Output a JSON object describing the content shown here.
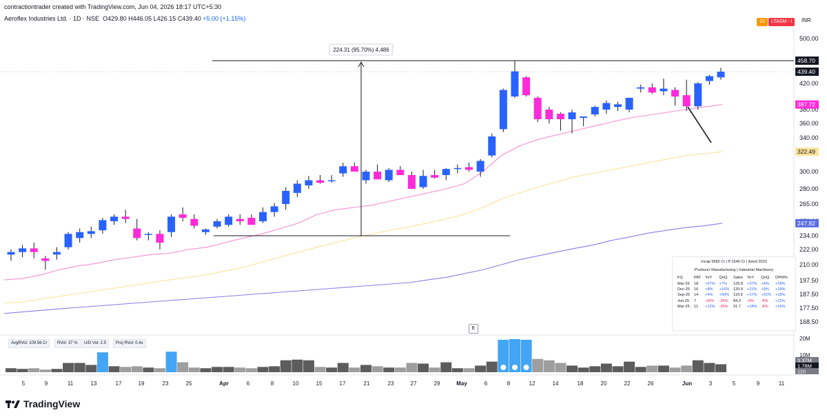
{
  "header": {
    "created_by": "contractiontrader created with TradingView.com, Jun 04, 2026 18:17 UTC+5:30",
    "symbol": "Aeroflex Industries Ltd. · 1D · NSE",
    "open": "O429.80",
    "high": "H446.05",
    "low": "L426.15",
    "close": "C439.40",
    "change": "+5.00 (+1.15%)"
  },
  "badges": {
    "b1": "10",
    "b2": "LTASM - I",
    "currency": "INR"
  },
  "colors": {
    "up": "#2962ff",
    "down": "#ff2bd8",
    "ma_pink": "#f48fcf",
    "ma_yellow": "#fbe29a",
    "ma_purple": "#8b7be6"
  },
  "measure_label": "224.31 (95.70%) 4,486",
  "price_tags": {
    "high": "458.70",
    "last": "439.40",
    "ma1": "387.72",
    "ma2": "322.49",
    "ma3": "247.82"
  },
  "y_ticks": [
    "500.00",
    "420.00",
    "380.00",
    "360.00",
    "340.00",
    "320.00",
    "300.00",
    "280.00",
    "265.00",
    "250.00",
    "234.00",
    "222.00",
    "210.00",
    "197.50",
    "187.50",
    "177.50",
    "168.50"
  ],
  "vol_ticks": {
    "top": "20M",
    "mid": "10M",
    "tag1": "3.37M",
    "tag2": "1.78M",
    "tag3": "110"
  },
  "x_labels": [
    "5",
    "9",
    "11",
    "13",
    "17",
    "19",
    "23",
    "25",
    "Apr",
    "6",
    "8",
    "10",
    "15",
    "17",
    "21",
    "23",
    "27",
    "29",
    "May",
    "6",
    "8",
    "12",
    "14",
    "18",
    "20",
    "22",
    "26",
    "Jun",
    "3",
    "5",
    "9",
    "11"
  ],
  "indicators": {
    "avg": "AvgRVol: 109.56 Cr",
    "rvol": "RVol: 37 %",
    "ud": "U/D Vol: 2.5",
    "proj": "Proj RVol: 0.4x"
  },
  "e_marker": "E",
  "fundamentals": {
    "line1": "mcap 5682 Cr  |  ff 1546 Cr  |  listed 2023",
    "line2": "Producer Manufacturing  |  Industrial Machinery",
    "headers": [
      "FQ",
      "PAT",
      "YoY",
      "QoQ",
      "Sales",
      "YoY",
      "QoQ",
      "OPM%"
    ],
    "rows": [
      [
        "Mar-26",
        "18",
        "+57%",
        "+7%",
        "125.8",
        "+37%",
        "+4%",
        "+18%"
      ],
      [
        "Dec-25",
        "16",
        "+8%",
        "+16%",
        "120.9",
        "+21%",
        "+9%",
        "+18%"
      ],
      [
        "Sep-25",
        "14",
        "+4%",
        "+99%",
        "110.9",
        "+17%",
        "+31%",
        "+18%"
      ],
      [
        "Jun-25",
        "7",
        "-42%",
        "-26%",
        "84.3",
        "-6%",
        "-8%",
        "+11%"
      ],
      [
        "Mar-25",
        "11",
        "+12%",
        "-26%",
        "91.7",
        "+18%",
        "-8%",
        "+16%"
      ]
    ]
  },
  "brand": "TradingView",
  "chart_data": {
    "type": "candlestick",
    "title": "Aeroflex Industries Ltd. · 1D · NSE",
    "x_labels": [
      "5",
      "9",
      "11",
      "13",
      "17",
      "19",
      "23",
      "25",
      "Apr",
      "6",
      "8",
      "10",
      "15",
      "17",
      "21",
      "23",
      "27",
      "29",
      "May",
      "6",
      "8",
      "12",
      "14",
      "18",
      "20",
      "22",
      "26",
      "Jun",
      "3",
      "5",
      "9",
      "11"
    ],
    "candles": [
      {
        "o": 218,
        "h": 222,
        "l": 213,
        "c": 220
      },
      {
        "o": 220,
        "h": 226,
        "l": 216,
        "c": 223
      },
      {
        "o": 223,
        "h": 228,
        "l": 215,
        "c": 220
      },
      {
        "o": 215,
        "h": 217,
        "l": 206,
        "c": 213
      },
      {
        "o": 218,
        "h": 224,
        "l": 214,
        "c": 220
      },
      {
        "o": 224,
        "h": 238,
        "l": 222,
        "c": 236
      },
      {
        "o": 232,
        "h": 242,
        "l": 228,
        "c": 238
      },
      {
        "o": 236,
        "h": 244,
        "l": 232,
        "c": 239
      },
      {
        "o": 240,
        "h": 253,
        "l": 236,
        "c": 251
      },
      {
        "o": 250,
        "h": 256,
        "l": 246,
        "c": 254
      },
      {
        "o": 254,
        "h": 260,
        "l": 248,
        "c": 252
      },
      {
        "o": 242,
        "h": 252,
        "l": 230,
        "c": 232
      },
      {
        "o": 236,
        "h": 238,
        "l": 230,
        "c": 236
      },
      {
        "o": 236,
        "h": 240,
        "l": 222,
        "c": 228
      },
      {
        "o": 238,
        "h": 256,
        "l": 233,
        "c": 254
      },
      {
        "o": 256,
        "h": 262,
        "l": 250,
        "c": 253
      },
      {
        "o": 252,
        "h": 256,
        "l": 242,
        "c": 245
      },
      {
        "o": 238,
        "h": 242,
        "l": 235,
        "c": 241
      },
      {
        "o": 244,
        "h": 252,
        "l": 242,
        "c": 250
      },
      {
        "o": 246,
        "h": 256,
        "l": 244,
        "c": 254
      },
      {
        "o": 252,
        "h": 256,
        "l": 246,
        "c": 250
      },
      {
        "o": 253,
        "h": 256,
        "l": 248,
        "c": 246
      },
      {
        "o": 250,
        "h": 262,
        "l": 248,
        "c": 258
      },
      {
        "o": 258,
        "h": 266,
        "l": 254,
        "c": 263
      },
      {
        "o": 265,
        "h": 282,
        "l": 260,
        "c": 278
      },
      {
        "o": 276,
        "h": 290,
        "l": 272,
        "c": 286
      },
      {
        "o": 284,
        "h": 295,
        "l": 280,
        "c": 290
      },
      {
        "o": 290,
        "h": 296,
        "l": 286,
        "c": 287
      },
      {
        "o": 290,
        "h": 296,
        "l": 287,
        "c": 290
      },
      {
        "o": 298,
        "h": 310,
        "l": 294,
        "c": 306
      },
      {
        "o": 306,
        "h": 310,
        "l": 300,
        "c": 300
      },
      {
        "o": 290,
        "h": 302,
        "l": 286,
        "c": 300
      },
      {
        "o": 300,
        "h": 308,
        "l": 292,
        "c": 291
      },
      {
        "o": 290,
        "h": 304,
        "l": 288,
        "c": 302
      },
      {
        "o": 302,
        "h": 306,
        "l": 296,
        "c": 296
      },
      {
        "o": 296,
        "h": 300,
        "l": 280,
        "c": 280
      },
      {
        "o": 282,
        "h": 302,
        "l": 280,
        "c": 295
      },
      {
        "o": 296,
        "h": 302,
        "l": 292,
        "c": 293
      },
      {
        "o": 296,
        "h": 304,
        "l": 290,
        "c": 303
      },
      {
        "o": 304,
        "h": 308,
        "l": 298,
        "c": 304
      },
      {
        "o": 305,
        "h": 310,
        "l": 300,
        "c": 302
      },
      {
        "o": 300,
        "h": 314,
        "l": 294,
        "c": 312
      },
      {
        "o": 318,
        "h": 346,
        "l": 316,
        "c": 342
      },
      {
        "o": 352,
        "h": 412,
        "l": 348,
        "c": 410
      },
      {
        "o": 400,
        "h": 458.7,
        "l": 398,
        "c": 440
      },
      {
        "o": 430,
        "h": 432,
        "l": 400,
        "c": 402
      },
      {
        "o": 398,
        "h": 400,
        "l": 362,
        "c": 366
      },
      {
        "o": 380,
        "h": 384,
        "l": 360,
        "c": 366
      },
      {
        "o": 374,
        "h": 376,
        "l": 350,
        "c": 366
      },
      {
        "o": 366,
        "h": 380,
        "l": 346,
        "c": 376
      },
      {
        "o": 368,
        "h": 370,
        "l": 356,
        "c": 370
      },
      {
        "o": 373,
        "h": 386,
        "l": 370,
        "c": 384
      },
      {
        "o": 380,
        "h": 394,
        "l": 374,
        "c": 390
      },
      {
        "o": 384,
        "h": 392,
        "l": 378,
        "c": 388
      },
      {
        "o": 380,
        "h": 398,
        "l": 376,
        "c": 398
      },
      {
        "o": 412,
        "h": 418,
        "l": 406,
        "c": 414
      },
      {
        "o": 414,
        "h": 420,
        "l": 404,
        "c": 406
      },
      {
        "o": 408,
        "h": 428,
        "l": 402,
        "c": 412
      },
      {
        "o": 410,
        "h": 414,
        "l": 386,
        "c": 400
      },
      {
        "o": 402,
        "h": 426,
        "l": 378,
        "c": 385
      },
      {
        "o": 385,
        "h": 422,
        "l": 380,
        "c": 420
      },
      {
        "o": 424,
        "h": 434,
        "l": 418,
        "c": 432
      },
      {
        "o": 430,
        "h": 446.05,
        "l": 426.15,
        "c": 439.4
      }
    ],
    "overlays": [
      {
        "name": "MA pink",
        "last": 387.72
      },
      {
        "name": "MA yellow",
        "last": 322.49
      },
      {
        "name": "MA purple",
        "last": 247.82
      }
    ],
    "volume_note": "volume histogram, 20M top scale"
  }
}
